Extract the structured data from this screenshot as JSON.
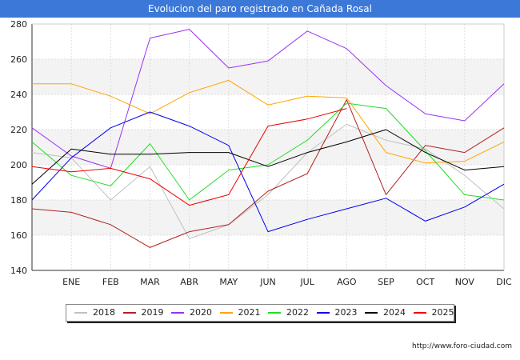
{
  "title": "Evolucion del paro registrado en Cañada Rosal",
  "source": "http://www.foro-ciudad.com",
  "chart_data": {
    "type": "line",
    "categories": [
      "",
      "ENE",
      "FEB",
      "MAR",
      "ABR",
      "MAY",
      "JUN",
      "JUL",
      "AGO",
      "SEP",
      "OCT",
      "NOV",
      "DIC"
    ],
    "ylim": [
      140,
      280
    ],
    "yticks": [
      140,
      160,
      180,
      200,
      220,
      240,
      260,
      280
    ],
    "grid": true,
    "legend_position": "bottom",
    "series": [
      {
        "name": "2018",
        "color": "#c0c0c0",
        "values": [
          207,
          204,
          180,
          199,
          158,
          166,
          183,
          207,
          223,
          214,
          209,
          194,
          175
        ]
      },
      {
        "name": "2019",
        "color": "#b22222",
        "values": [
          175,
          173,
          166,
          153,
          162,
          166,
          185,
          195,
          237,
          183,
          211,
          207,
          221
        ]
      },
      {
        "name": "2020",
        "color": "#9a32f5",
        "values": [
          221,
          205,
          198,
          272,
          277,
          255,
          259,
          276,
          266,
          245,
          229,
          225,
          246
        ]
      },
      {
        "name": "2021",
        "color": "#ffa500",
        "values": [
          246,
          246,
          239,
          229,
          241,
          248,
          234,
          239,
          238,
          207,
          201,
          202,
          213
        ]
      },
      {
        "name": "2022",
        "color": "#22dd22",
        "values": [
          213,
          194,
          188,
          212,
          180,
          197,
          200,
          214,
          235,
          232,
          208,
          183,
          180
        ]
      },
      {
        "name": "2023",
        "color": "#0000ee",
        "values": [
          180,
          204,
          221,
          230,
          222,
          211,
          162,
          169,
          175,
          181,
          168,
          176,
          189
        ]
      },
      {
        "name": "2024",
        "color": "#000000",
        "values": [
          189,
          209,
          206,
          206,
          207,
          207,
          199,
          207,
          213,
          220,
          207,
          197,
          199
        ]
      },
      {
        "name": "2025",
        "color": "#ee0000",
        "values": [
          199,
          196,
          198,
          192,
          177,
          183,
          222,
          226,
          232,
          null,
          null,
          null,
          null
        ]
      }
    ]
  }
}
